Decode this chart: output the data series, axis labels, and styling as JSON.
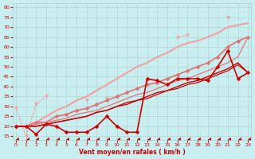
{
  "x": [
    0,
    1,
    2,
    3,
    4,
    5,
    6,
    7,
    8,
    9,
    10,
    11,
    12,
    13,
    14,
    15,
    16,
    17,
    18,
    19,
    20,
    21,
    22,
    23
  ],
  "series": [
    {
      "name": "light_pink_scattered_dotted",
      "color": "#f4a0a0",
      "linewidth": 0.8,
      "marker": "v",
      "markersize": 3,
      "linestyle": "--",
      "y": [
        29,
        15,
        31,
        35,
        null,
        null,
        null,
        33,
        null,
        34,
        null,
        null,
        null,
        null,
        null,
        null,
        65,
        66,
        null,
        null,
        null,
        75,
        null,
        null
      ]
    },
    {
      "name": "light_pink_solid_trend",
      "color": "#f4a0a0",
      "linewidth": 1.5,
      "marker": null,
      "linestyle": "-",
      "y": [
        20,
        20,
        22,
        25,
        28,
        30,
        33,
        35,
        38,
        41,
        44,
        47,
        50,
        52,
        55,
        57,
        60,
        62,
        63,
        65,
        67,
        70,
        71,
        72
      ]
    },
    {
      "name": "medium_pink_markers_trend",
      "color": "#e07070",
      "linewidth": 1.2,
      "marker": "D",
      "markersize": 2.5,
      "linestyle": "-",
      "y": [
        20,
        20,
        22,
        22,
        25,
        26,
        28,
        29,
        31,
        33,
        35,
        37,
        39,
        41,
        42,
        44,
        46,
        48,
        50,
        52,
        55,
        60,
        63,
        65
      ]
    },
    {
      "name": "medium_pink_solid",
      "color": "#e08080",
      "linewidth": 1.0,
      "marker": null,
      "linestyle": "-",
      "y": [
        20,
        20,
        21,
        22,
        23,
        24,
        26,
        27,
        28,
        30,
        32,
        34,
        36,
        37,
        39,
        41,
        43,
        44,
        46,
        48,
        50,
        52,
        55,
        65
      ]
    },
    {
      "name": "red_markers_volatile",
      "color": "#cc0000",
      "linewidth": 1.2,
      "marker": "D",
      "markersize": 2.5,
      "linestyle": "-",
      "y": [
        20,
        20,
        16,
        21,
        20,
        17,
        17,
        17,
        20,
        25,
        20,
        17,
        17,
        44,
        43,
        41,
        44,
        44,
        44,
        43,
        50,
        58,
        44,
        47
      ]
    },
    {
      "name": "red_linear1",
      "color": "#cc0000",
      "linewidth": 1.0,
      "marker": null,
      "linestyle": "-",
      "y": [
        20,
        20,
        20,
        21,
        22,
        23,
        24,
        25,
        27,
        28,
        30,
        32,
        33,
        35,
        37,
        38,
        40,
        42,
        43,
        45,
        47,
        49,
        52,
        47
      ]
    },
    {
      "name": "red_linear2",
      "color": "#cc0000",
      "linewidth": 0.9,
      "marker": null,
      "linestyle": "-",
      "y": [
        20,
        20,
        20,
        21,
        22,
        23,
        24,
        25,
        27,
        28,
        30,
        31,
        33,
        34,
        36,
        38,
        39,
        41,
        42,
        44,
        46,
        48,
        51,
        47
      ]
    },
    {
      "name": "arrows_bottom",
      "color": "#cc0000",
      "linewidth": 0.7,
      "marker": 4,
      "markersize": 4,
      "linestyle": ":",
      "y": [
        13,
        13,
        13,
        13,
        13,
        13,
        13,
        13,
        13,
        13,
        13,
        13,
        13,
        13,
        13,
        13,
        13,
        13,
        13,
        13,
        13,
        13,
        13,
        13
      ]
    }
  ],
  "xlim": [
    -0.3,
    23.3
  ],
  "ylim": [
    13,
    82
  ],
  "yticks": [
    15,
    20,
    25,
    30,
    35,
    40,
    45,
    50,
    55,
    60,
    65,
    70,
    75,
    80
  ],
  "xticks": [
    0,
    1,
    2,
    3,
    4,
    5,
    6,
    7,
    8,
    9,
    10,
    11,
    12,
    13,
    14,
    15,
    16,
    17,
    18,
    19,
    20,
    21,
    22,
    23
  ],
  "xlabel": "Vent moyen/en rafales ( km/h )",
  "bg_color": "#c8eef0",
  "grid_color": "#b0cccc",
  "tick_color": "#cc0000",
  "label_color": "#cc0000"
}
